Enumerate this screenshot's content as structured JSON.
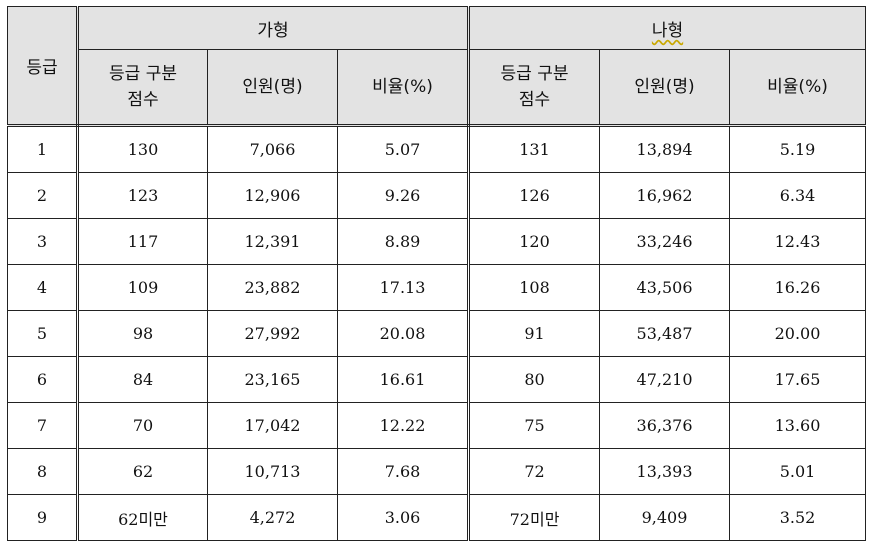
{
  "header": {
    "grade_label": "등급",
    "group_a": "가형",
    "group_b": "나형",
    "sub_headers": [
      "등급 구분\n점수",
      "인원(명)",
      "비율(%)"
    ]
  },
  "rows": [
    {
      "grade": "1",
      "a_score": "130",
      "a_count": "7,066",
      "a_ratio": "5.07",
      "b_score": "131",
      "b_count": "13,894",
      "b_ratio": "5.19"
    },
    {
      "grade": "2",
      "a_score": "123",
      "a_count": "12,906",
      "a_ratio": "9.26",
      "b_score": "126",
      "b_count": "16,962",
      "b_ratio": "6.34"
    },
    {
      "grade": "3",
      "a_score": "117",
      "a_count": "12,391",
      "a_ratio": "8.89",
      "b_score": "120",
      "b_count": "33,246",
      "b_ratio": "12.43"
    },
    {
      "grade": "4",
      "a_score": "109",
      "a_count": "23,882",
      "a_ratio": "17.13",
      "b_score": "108",
      "b_count": "43,506",
      "b_ratio": "16.26"
    },
    {
      "grade": "5",
      "a_score": "98",
      "a_count": "27,992",
      "a_ratio": "20.08",
      "b_score": "91",
      "b_count": "53,487",
      "b_ratio": "20.00"
    },
    {
      "grade": "6",
      "a_score": "84",
      "a_count": "23,165",
      "a_ratio": "16.61",
      "b_score": "80",
      "b_count": "47,210",
      "b_ratio": "17.65"
    },
    {
      "grade": "7",
      "a_score": "70",
      "a_count": "17,042",
      "a_ratio": "12.22",
      "b_score": "75",
      "b_count": "36,376",
      "b_ratio": "13.60"
    },
    {
      "grade": "8",
      "a_score": "62",
      "a_count": "10,713",
      "a_ratio": "7.68",
      "b_score": "72",
      "b_count": "13,393",
      "b_ratio": "5.01"
    },
    {
      "grade": "9",
      "a_score": "62미만",
      "a_count": "4,272",
      "a_ratio": "3.06",
      "b_score": "72미만",
      "b_count": "9,409",
      "b_ratio": "3.52"
    }
  ]
}
